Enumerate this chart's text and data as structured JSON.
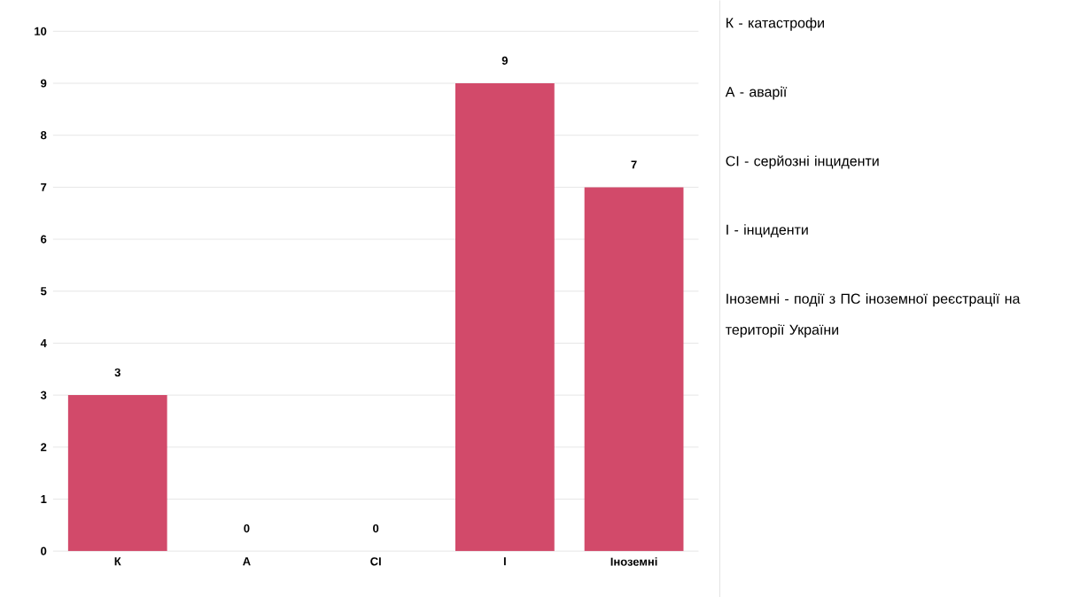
{
  "chart_data": {
    "type": "bar",
    "categories": [
      "К",
      "А",
      "СІ",
      "І",
      "Іноземні"
    ],
    "values": [
      3,
      0,
      0,
      9,
      7
    ],
    "color": "#d24a6a",
    "ylim": [
      0,
      10
    ],
    "yticks": [
      0,
      1,
      2,
      3,
      4,
      5,
      6,
      7,
      8,
      9,
      10
    ],
    "grid": "y",
    "data_labels": true,
    "annotations": [
      "К - катастрофи",
      "А - аварії",
      "СІ - серйозні інциденти",
      "І - інциденти",
      "Іноземні - події з ПС іноземної реєстрації на території України"
    ]
  }
}
